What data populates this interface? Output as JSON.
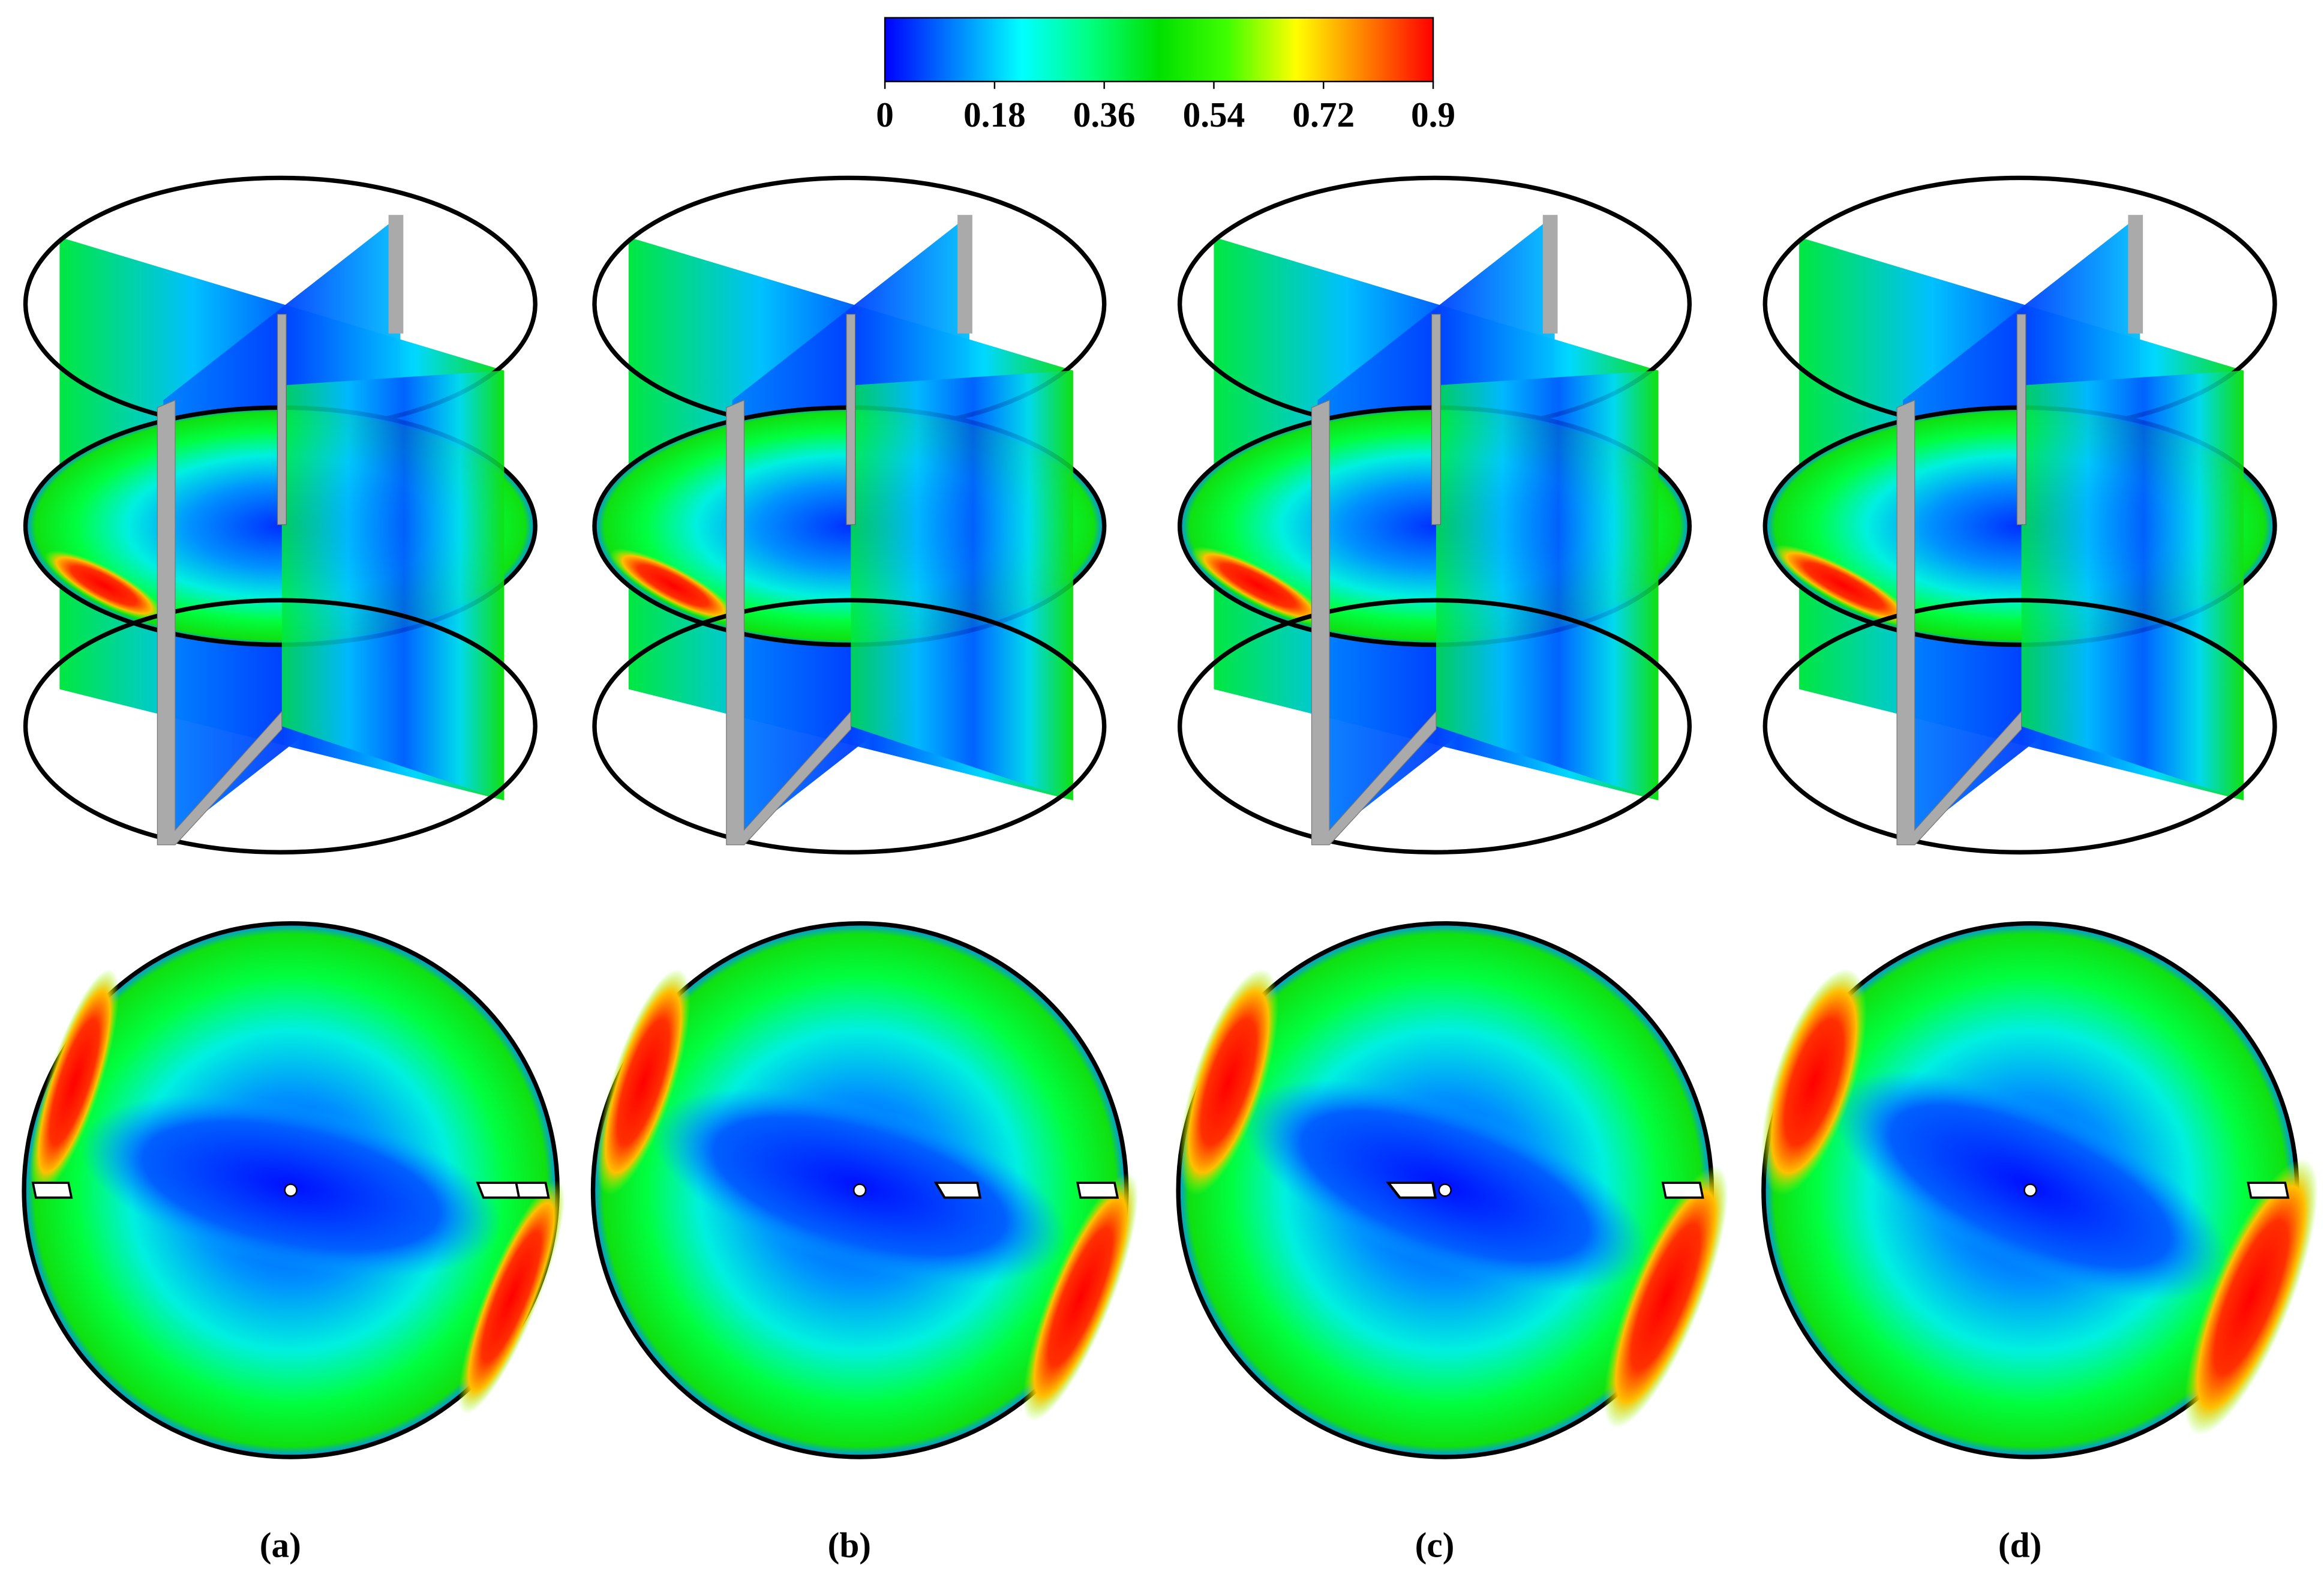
{
  "colorbar": {
    "ticks": [
      0,
      0.18,
      0.36,
      0.54,
      0.72,
      0.9
    ],
    "colors": [
      "#0000ff",
      "#0080ff",
      "#00ffff",
      "#00ff80",
      "#00e000",
      "#40ff00",
      "#ffff00",
      "#ff8000",
      "#ff0000"
    ]
  },
  "panels": [
    {
      "label": "(a)"
    },
    {
      "label": "(b)"
    },
    {
      "label": "(c)"
    },
    {
      "label": "(d)"
    }
  ]
}
